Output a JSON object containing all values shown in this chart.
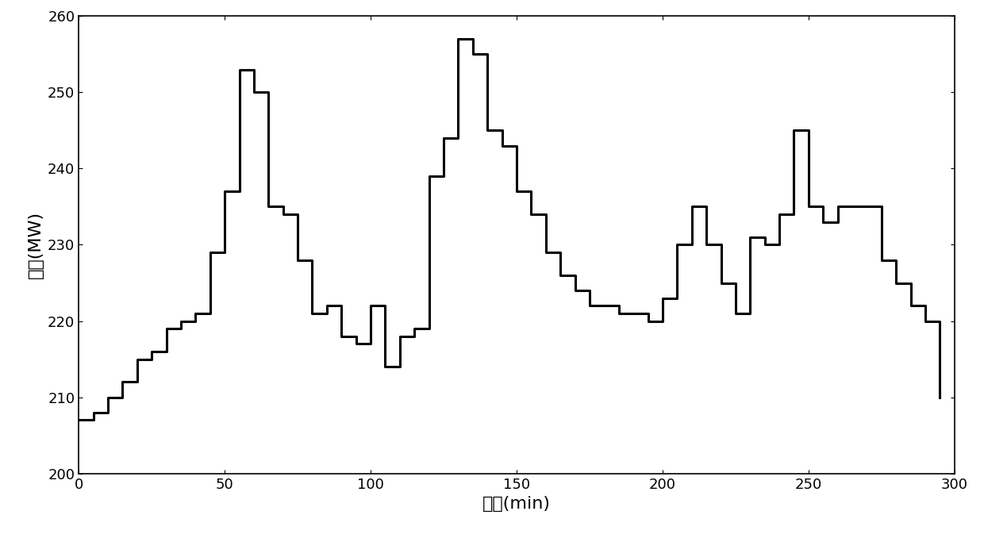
{
  "title": "",
  "xlabel": "时间(min)",
  "ylabel": "功率(MW)",
  "xlim": [
    0,
    300
  ],
  "ylim": [
    200,
    260
  ],
  "xticks": [
    0,
    50,
    100,
    150,
    200,
    250,
    300
  ],
  "yticks": [
    200,
    210,
    220,
    230,
    240,
    250,
    260
  ],
  "line_color": "#000000",
  "line_width": 2.2,
  "background_color": "#ffffff",
  "step_x": [
    0,
    5,
    10,
    15,
    20,
    25,
    30,
    35,
    40,
    45,
    50,
    55,
    60,
    65,
    70,
    75,
    80,
    85,
    90,
    95,
    100,
    105,
    110,
    115,
    120,
    125,
    130,
    135,
    140,
    145,
    150,
    155,
    160,
    165,
    170,
    175,
    180,
    185,
    190,
    195,
    200,
    205,
    210,
    215,
    220,
    225,
    230,
    235,
    240,
    245,
    250,
    255,
    260,
    265,
    270,
    275,
    280,
    285,
    290,
    295
  ],
  "step_y": [
    207,
    208,
    210,
    212,
    215,
    216,
    219,
    220,
    221,
    229,
    237,
    253,
    250,
    235,
    234,
    228,
    221,
    222,
    218,
    217,
    222,
    214,
    218,
    219,
    239,
    244,
    257,
    255,
    245,
    243,
    237,
    234,
    229,
    226,
    224,
    222,
    222,
    221,
    221,
    220,
    223,
    230,
    235,
    230,
    225,
    221,
    231,
    230,
    234,
    245,
    235,
    233,
    235,
    235,
    235,
    228,
    225,
    222,
    220,
    210
  ]
}
